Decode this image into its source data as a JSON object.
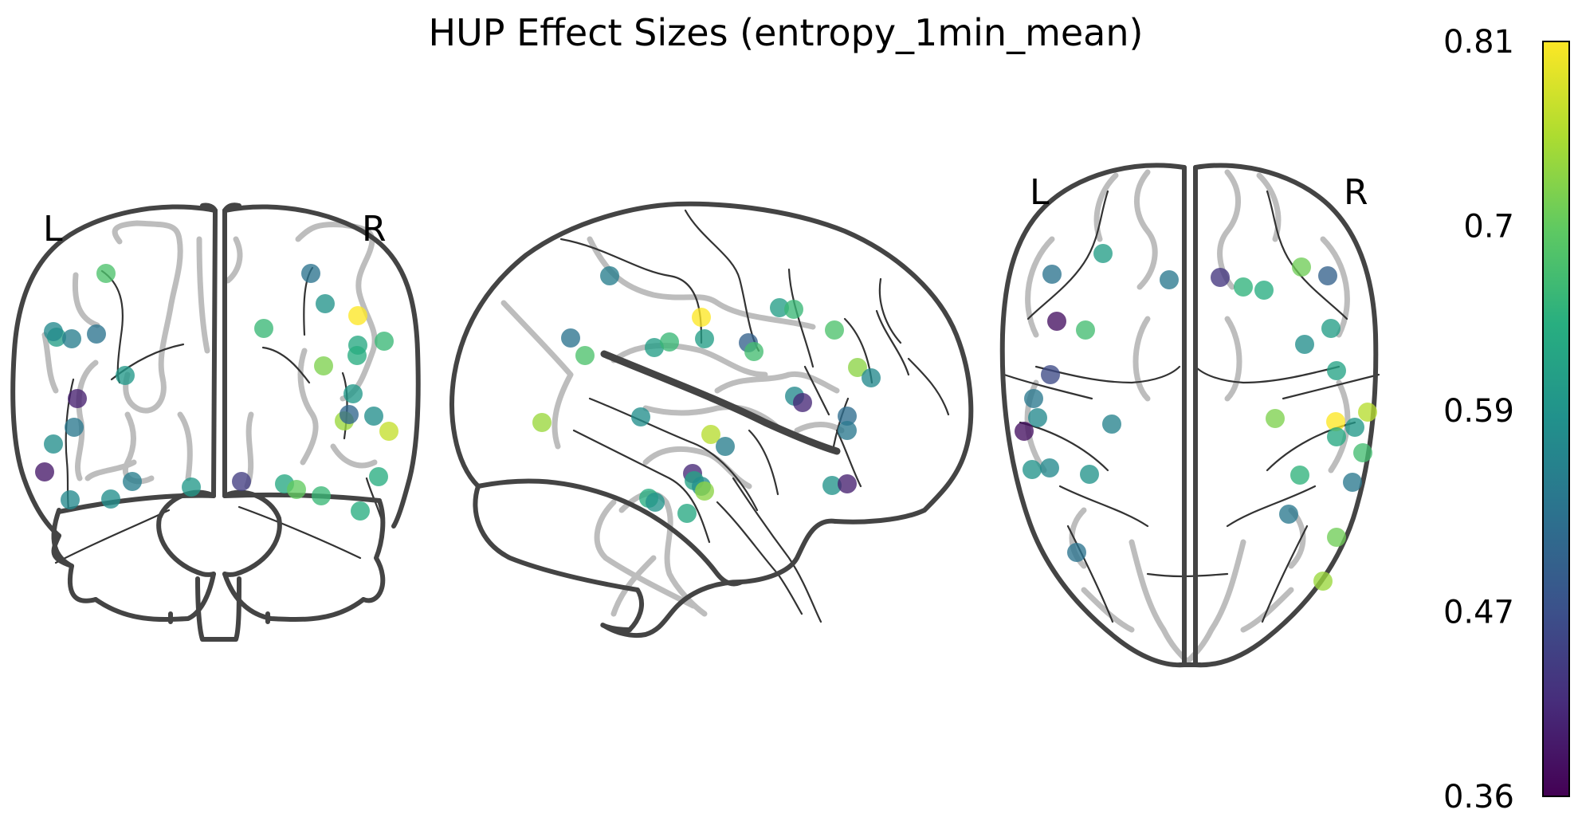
{
  "title": "HUP Effect Sizes (entropy_1min_mean)",
  "views": {
    "coronal": {
      "left_label": "L",
      "right_label": "R"
    },
    "axial": {
      "left_label": "L",
      "right_label": "R"
    }
  },
  "colorbar": {
    "colormap": "viridis",
    "min": 0.36,
    "max": 0.81,
    "ticks": [
      "0.81",
      "0.7",
      "0.59",
      "0.47",
      "0.36"
    ],
    "tick_values": [
      0.81,
      0.7,
      0.59,
      0.47,
      0.36
    ]
  },
  "electrodes": {
    "coronal": [
      [
        0.68,
        133,
        343
      ],
      [
        0.61,
        71,
        423
      ],
      [
        0.55,
        90,
        425
      ],
      [
        0.53,
        121,
        419
      ],
      [
        0.6,
        157,
        471
      ],
      [
        0.4,
        97,
        500
      ],
      [
        0.54,
        93,
        536
      ],
      [
        0.58,
        67,
        557
      ],
      [
        0.39,
        56,
        592
      ],
      [
        0.57,
        88,
        627
      ],
      [
        0.55,
        166,
        604
      ],
      [
        0.58,
        139,
        626
      ],
      [
        0.6,
        240,
        611
      ],
      [
        0.44,
        303,
        604
      ],
      [
        0.53,
        390,
        343
      ],
      [
        0.59,
        408,
        381
      ],
      [
        0.81,
        449,
        396
      ],
      [
        0.66,
        331,
        412
      ],
      [
        0.63,
        449,
        433
      ],
      [
        0.66,
        482,
        428
      ],
      [
        0.64,
        448,
        446
      ],
      [
        0.72,
        406,
        459
      ],
      [
        0.6,
        443,
        494
      ],
      [
        0.74,
        432,
        528
      ],
      [
        0.51,
        438,
        520
      ],
      [
        0.58,
        469,
        522
      ],
      [
        0.77,
        488,
        541
      ],
      [
        0.64,
        475,
        598
      ],
      [
        0.63,
        357,
        607
      ],
      [
        0.7,
        372,
        614
      ],
      [
        0.66,
        403,
        622
      ],
      [
        0.64,
        452,
        641
      ],
      [
        0.57,
        67,
        416
      ]
    ],
    "sagittal": [
      [
        0.55,
        765,
        346
      ],
      [
        0.53,
        716,
        424
      ],
      [
        0.68,
        734,
        446
      ],
      [
        0.61,
        821,
        436
      ],
      [
        0.66,
        840,
        429
      ],
      [
        0.81,
        880,
        398
      ],
      [
        0.61,
        884,
        425
      ],
      [
        0.5,
        939,
        430
      ],
      [
        0.67,
        946,
        441
      ],
      [
        0.61,
        978,
        386
      ],
      [
        0.66,
        996,
        388
      ],
      [
        0.68,
        1047,
        414
      ],
      [
        0.73,
        1076,
        461
      ],
      [
        0.57,
        1093,
        474
      ],
      [
        0.57,
        997,
        497
      ],
      [
        0.41,
        1007,
        505
      ],
      [
        0.52,
        1063,
        522
      ],
      [
        0.54,
        1063,
        540
      ],
      [
        0.74,
        680,
        530
      ],
      [
        0.58,
        804,
        523
      ],
      [
        0.76,
        892,
        545
      ],
      [
        0.55,
        910,
        560
      ],
      [
        0.41,
        869,
        594
      ],
      [
        0.62,
        871,
        603
      ],
      [
        0.58,
        880,
        610
      ],
      [
        0.73,
        884,
        616
      ],
      [
        0.64,
        814,
        625
      ],
      [
        0.59,
        822,
        630
      ],
      [
        0.63,
        862,
        644
      ],
      [
        0.59,
        1044,
        609
      ],
      [
        0.4,
        1063,
        607
      ]
    ],
    "axial": [
      [
        0.53,
        1320,
        344
      ],
      [
        0.61,
        1384,
        318
      ],
      [
        0.54,
        1467,
        351
      ],
      [
        0.43,
        1531,
        348
      ],
      [
        0.65,
        1560,
        360
      ],
      [
        0.64,
        1586,
        364
      ],
      [
        0.71,
        1633,
        335
      ],
      [
        0.5,
        1666,
        346
      ],
      [
        0.38,
        1326,
        403
      ],
      [
        0.67,
        1362,
        414
      ],
      [
        0.58,
        1637,
        432
      ],
      [
        0.61,
        1670,
        412
      ],
      [
        0.46,
        1318,
        470
      ],
      [
        0.54,
        1297,
        500
      ],
      [
        0.57,
        1302,
        524
      ],
      [
        0.38,
        1285,
        541
      ],
      [
        0.56,
        1395,
        532
      ],
      [
        0.62,
        1677,
        465
      ],
      [
        0.81,
        1676,
        529
      ],
      [
        0.76,
        1716,
        517
      ],
      [
        0.6,
        1700,
        536
      ],
      [
        0.72,
        1600,
        525
      ],
      [
        0.63,
        1677,
        548
      ],
      [
        0.67,
        1710,
        568
      ],
      [
        0.59,
        1295,
        589
      ],
      [
        0.57,
        1317,
        587
      ],
      [
        0.59,
        1367,
        595
      ],
      [
        0.65,
        1631,
        596
      ],
      [
        0.54,
        1697,
        605
      ],
      [
        0.54,
        1617,
        645
      ],
      [
        0.71,
        1677,
        674
      ],
      [
        0.53,
        1351,
        693
      ],
      [
        0.74,
        1660,
        729
      ]
    ]
  }
}
